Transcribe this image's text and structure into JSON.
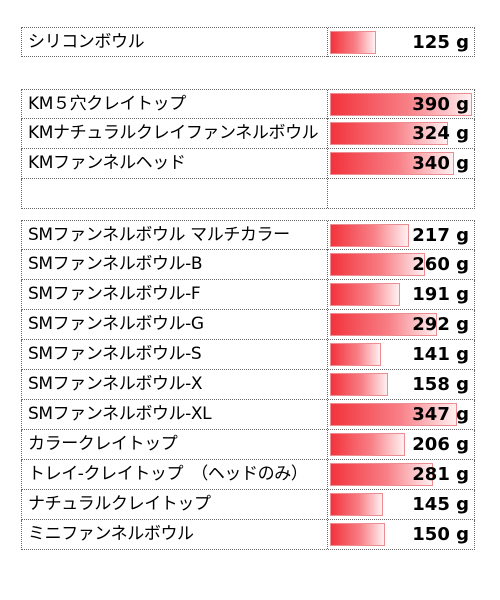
{
  "chart_data": {
    "type": "bar",
    "orientation": "horizontal",
    "unit": "g",
    "xlim": [
      0,
      400
    ],
    "groups": [
      {
        "rows": [
          {
            "name": "シリコンボウル",
            "value": 125
          }
        ]
      },
      {
        "rows": [
          {
            "name": "KM５穴クレイトップ",
            "value": 390
          },
          {
            "name": "KMナチュラルクレイファンネルボウル",
            "value": 324
          },
          {
            "name": "KMファンネルヘッド",
            "value": 340
          },
          {
            "name": "",
            "value": null
          }
        ]
      },
      {
        "rows": [
          {
            "name": "SMファンネルボウル マルチカラー",
            "value": 217
          },
          {
            "name": "SMファンネルボウル-B",
            "value": 260
          },
          {
            "name": "SMファンネルボウル-F",
            "value": 191
          },
          {
            "name": "SMファンネルボウル-G",
            "value": 292
          },
          {
            "name": "SMファンネルボウル-S",
            "value": 141
          },
          {
            "name": "SMファンネルボウル-X",
            "value": 158
          },
          {
            "name": "SMファンネルボウル-XL",
            "value": 347
          },
          {
            "name": "カラークレイトップ",
            "value": 206
          },
          {
            "name": "トレイ-クレイトップ　（ヘッドのみ）",
            "value": 281
          },
          {
            "name": "ナチュラルクレイトップ",
            "value": 145
          },
          {
            "name": "ミニファンネルボウル",
            "value": 150
          }
        ]
      }
    ],
    "bar_color": "#f2333c"
  }
}
